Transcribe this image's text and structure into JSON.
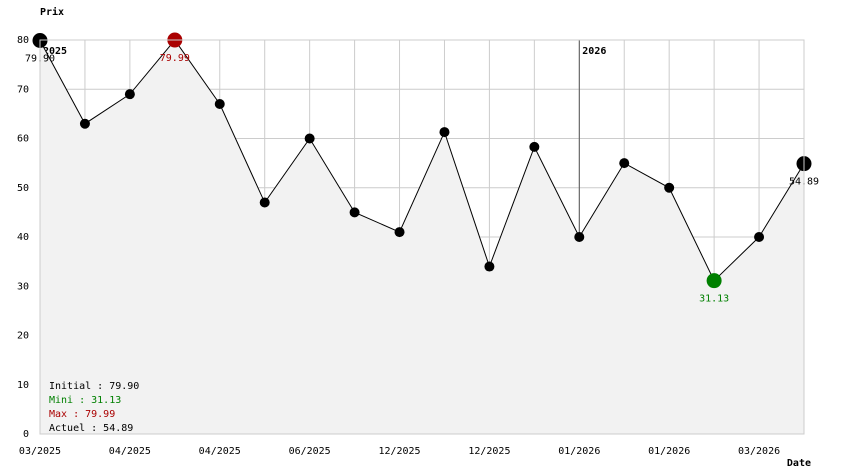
{
  "chart_data": {
    "type": "line",
    "y_label": "Prix",
    "x_label": "Date",
    "categories": [
      "03/2025",
      null,
      "04/2025",
      null,
      "04/2025",
      null,
      "06/2025",
      null,
      "12/2025",
      null,
      "12/2025",
      null,
      "01/2026",
      null,
      "01/2026",
      null,
      "03/2026",
      null
    ],
    "series": [
      {
        "name": "Prix",
        "color": "#000000",
        "values": [
          79.9,
          63,
          69,
          79.99,
          67,
          47,
          60,
          45,
          41,
          61.3,
          34,
          58.3,
          40,
          55,
          50,
          31.13,
          40,
          54.89
        ],
        "value_labels": [
          "79.90",
          null,
          null,
          "79.99",
          null,
          null,
          null,
          null,
          null,
          null,
          null,
          null,
          null,
          null,
          null,
          "31.13",
          null,
          "54.89"
        ]
      }
    ],
    "area_color": "#f2f2f2",
    "min_color": "#008000",
    "max_color": "#aa0000",
    "ylim": [
      0,
      80
    ],
    "yticks": [
      0,
      10,
      20,
      30,
      40,
      50,
      60,
      70,
      80
    ],
    "grid": true,
    "year_markers": [
      {
        "label": "2025",
        "index": 0
      },
      {
        "label": "2026",
        "index": 12
      }
    ],
    "stats": [
      {
        "text": "Initial : 79.90",
        "color": "#000000"
      },
      {
        "text": "Mini : 31.13",
        "color": "#008000"
      },
      {
        "text": "Max : 79.99",
        "color": "#aa0000"
      },
      {
        "text": "Actuel : 54.89",
        "color": "#000000"
      }
    ]
  }
}
